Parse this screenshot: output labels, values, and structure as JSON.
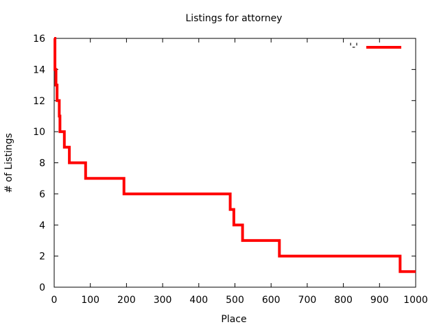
{
  "chart_data": {
    "type": "line",
    "title": "Listings for attorney",
    "xlabel": "Place",
    "ylabel": "# of Listings",
    "xlim": [
      0,
      1000
    ],
    "ylim": [
      0,
      16
    ],
    "x_ticks": [
      "0",
      "100",
      "200",
      "300",
      "400",
      "500",
      "600",
      "700",
      "800",
      "900",
      "1000"
    ],
    "y_ticks": [
      "0",
      "2",
      "4",
      "6",
      "8",
      "10",
      "12",
      "14",
      "16"
    ],
    "grid": false,
    "legend_position": "top-right",
    "step": true,
    "series": [
      {
        "name": "'-'",
        "color": "#ff0000",
        "points": [
          [
            0,
            16
          ],
          [
            2,
            14
          ],
          [
            5,
            13
          ],
          [
            8,
            12
          ],
          [
            14,
            11
          ],
          [
            16,
            10
          ],
          [
            28,
            9
          ],
          [
            42,
            8
          ],
          [
            87,
            7
          ],
          [
            193,
            6
          ],
          [
            487,
            5
          ],
          [
            497,
            4
          ],
          [
            521,
            3
          ],
          [
            623,
            2
          ],
          [
            957,
            1
          ],
          [
            1000,
            1
          ]
        ]
      }
    ]
  }
}
